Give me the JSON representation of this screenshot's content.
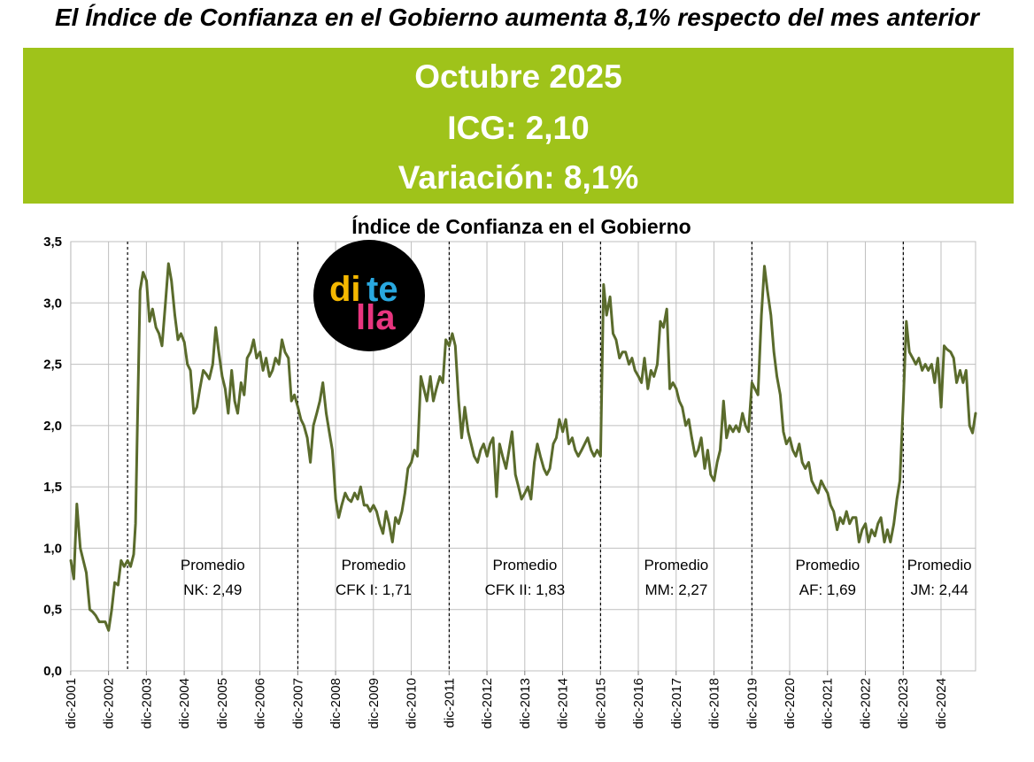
{
  "headline": "El Índice de Confianza en el Gobierno aumenta 8,1% respecto del mes anterior",
  "banner": {
    "line1": "Octubre 2025",
    "line2": "ICG: 2,10",
    "line3": "Variación: 8,1%",
    "color": "#9fc31a"
  },
  "logo": {
    "text": "ditella",
    "colors": {
      "di": "#f5b800",
      "te": "#29a8e0",
      "lla": "#e8357f",
      "background": "#000000"
    }
  },
  "chart_data": {
    "type": "line",
    "title": "Índice de Confianza en el Gobierno",
    "xlabel": "",
    "ylabel": "",
    "ylim": [
      0,
      3.5
    ],
    "yticks": [
      0,
      0.5,
      1,
      1.5,
      2,
      2.5,
      3,
      3.5
    ],
    "ytick_labels": [
      "0,0",
      "0,5",
      "1,0",
      "1,5",
      "2,0",
      "2,5",
      "3,0",
      "3,5"
    ],
    "xlim": [
      2001.92,
      2025.83
    ],
    "xticks": [
      "dic-2001",
      "dic-2002",
      "dic-2003",
      "dic-2004",
      "dic-2005",
      "dic-2006",
      "dic-2007",
      "dic-2008",
      "dic-2009",
      "dic-2010",
      "dic-2011",
      "dic-2012",
      "dic-2013",
      "dic-2014",
      "dic-2015",
      "dic-2016",
      "dic-2017",
      "dic-2018",
      "dic-2019",
      "dic-2020",
      "dic-2021",
      "dic-2022",
      "dic-2023",
      "dic-2024"
    ],
    "grid": true,
    "line_color": "#5a6b2c",
    "period_dividers": [
      2003.42,
      2007.92,
      2011.92,
      2015.92,
      2019.92,
      2023.92
    ],
    "annotations": [
      {
        "line1": "Promedio",
        "line2": "NK: 2,49"
      },
      {
        "line1": "Promedio",
        "line2": "CFK I: 1,71"
      },
      {
        "line1": "Promedio",
        "line2": "CFK II: 1,83"
      },
      {
        "line1": "Promedio",
        "line2": "MM: 2,27"
      },
      {
        "line1": "Promedio",
        "line2": "AF: 1,69"
      },
      {
        "line1": "Promedio",
        "line2": "JM: 2,44"
      }
    ],
    "series": [
      {
        "points": [
          [
            2001.92,
            0.9
          ],
          [
            2002.0,
            0.75
          ],
          [
            2002.08,
            1.36
          ],
          [
            2002.17,
            1.0
          ],
          [
            2002.33,
            0.8
          ],
          [
            2002.42,
            0.5
          ],
          [
            2002.5,
            0.48
          ],
          [
            2002.58,
            0.45
          ],
          [
            2002.67,
            0.4
          ],
          [
            2002.83,
            0.4
          ],
          [
            2002.92,
            0.33
          ],
          [
            2003.0,
            0.5
          ],
          [
            2003.08,
            0.72
          ],
          [
            2003.17,
            0.7
          ],
          [
            2003.25,
            0.9
          ],
          [
            2003.33,
            0.85
          ],
          [
            2003.42,
            0.9
          ],
          [
            2003.5,
            0.85
          ],
          [
            2003.58,
            0.95
          ],
          [
            2003.63,
            1.2
          ],
          [
            2003.68,
            2.0
          ],
          [
            2003.75,
            3.1
          ],
          [
            2003.83,
            3.25
          ],
          [
            2003.92,
            3.18
          ],
          [
            2004.0,
            2.85
          ],
          [
            2004.08,
            2.95
          ],
          [
            2004.17,
            2.8
          ],
          [
            2004.25,
            2.75
          ],
          [
            2004.33,
            2.65
          ],
          [
            2004.42,
            3.0
          ],
          [
            2004.5,
            3.32
          ],
          [
            2004.58,
            3.18
          ],
          [
            2004.67,
            2.9
          ],
          [
            2004.75,
            2.7
          ],
          [
            2004.83,
            2.75
          ],
          [
            2004.92,
            2.68
          ],
          [
            2005.0,
            2.5
          ],
          [
            2005.08,
            2.45
          ],
          [
            2005.17,
            2.1
          ],
          [
            2005.25,
            2.15
          ],
          [
            2005.33,
            2.3
          ],
          [
            2005.42,
            2.45
          ],
          [
            2005.5,
            2.42
          ],
          [
            2005.58,
            2.38
          ],
          [
            2005.67,
            2.5
          ],
          [
            2005.75,
            2.8
          ],
          [
            2005.83,
            2.6
          ],
          [
            2005.92,
            2.4
          ],
          [
            2006.0,
            2.3
          ],
          [
            2006.08,
            2.1
          ],
          [
            2006.17,
            2.45
          ],
          [
            2006.25,
            2.2
          ],
          [
            2006.33,
            2.1
          ],
          [
            2006.42,
            2.35
          ],
          [
            2006.5,
            2.25
          ],
          [
            2006.58,
            2.55
          ],
          [
            2006.67,
            2.6
          ],
          [
            2006.75,
            2.7
          ],
          [
            2006.83,
            2.55
          ],
          [
            2006.92,
            2.6
          ],
          [
            2007.0,
            2.45
          ],
          [
            2007.08,
            2.55
          ],
          [
            2007.17,
            2.4
          ],
          [
            2007.25,
            2.45
          ],
          [
            2007.33,
            2.55
          ],
          [
            2007.42,
            2.5
          ],
          [
            2007.5,
            2.7
          ],
          [
            2007.58,
            2.6
          ],
          [
            2007.67,
            2.55
          ],
          [
            2007.75,
            2.2
          ],
          [
            2007.83,
            2.25
          ],
          [
            2007.92,
            2.15
          ],
          [
            2008.0,
            2.05
          ],
          [
            2008.08,
            2.0
          ],
          [
            2008.17,
            1.9
          ],
          [
            2008.25,
            1.7
          ],
          [
            2008.33,
            2.0
          ],
          [
            2008.42,
            2.1
          ],
          [
            2008.5,
            2.2
          ],
          [
            2008.58,
            2.35
          ],
          [
            2008.67,
            2.1
          ],
          [
            2008.75,
            1.95
          ],
          [
            2008.83,
            1.8
          ],
          [
            2008.92,
            1.4
          ],
          [
            2009.0,
            1.25
          ],
          [
            2009.08,
            1.35
          ],
          [
            2009.17,
            1.45
          ],
          [
            2009.25,
            1.4
          ],
          [
            2009.33,
            1.38
          ],
          [
            2009.42,
            1.45
          ],
          [
            2009.5,
            1.4
          ],
          [
            2009.58,
            1.5
          ],
          [
            2009.67,
            1.35
          ],
          [
            2009.75,
            1.35
          ],
          [
            2009.83,
            1.3
          ],
          [
            2009.92,
            1.35
          ],
          [
            2010.0,
            1.3
          ],
          [
            2010.08,
            1.2
          ],
          [
            2010.17,
            1.12
          ],
          [
            2010.25,
            1.3
          ],
          [
            2010.33,
            1.2
          ],
          [
            2010.42,
            1.05
          ],
          [
            2010.5,
            1.25
          ],
          [
            2010.58,
            1.2
          ],
          [
            2010.67,
            1.3
          ],
          [
            2010.75,
            1.45
          ],
          [
            2010.83,
            1.65
          ],
          [
            2010.92,
            1.7
          ],
          [
            2011.0,
            1.8
          ],
          [
            2011.08,
            1.75
          ],
          [
            2011.17,
            2.4
          ],
          [
            2011.25,
            2.3
          ],
          [
            2011.33,
            2.2
          ],
          [
            2011.42,
            2.4
          ],
          [
            2011.5,
            2.2
          ],
          [
            2011.58,
            2.3
          ],
          [
            2011.67,
            2.4
          ],
          [
            2011.75,
            2.35
          ],
          [
            2011.83,
            2.7
          ],
          [
            2011.92,
            2.65
          ],
          [
            2012.0,
            2.75
          ],
          [
            2012.08,
            2.65
          ],
          [
            2012.17,
            2.2
          ],
          [
            2012.25,
            1.9
          ],
          [
            2012.33,
            2.15
          ],
          [
            2012.42,
            1.95
          ],
          [
            2012.5,
            1.85
          ],
          [
            2012.58,
            1.75
          ],
          [
            2012.67,
            1.7
          ],
          [
            2012.75,
            1.8
          ],
          [
            2012.83,
            1.85
          ],
          [
            2012.92,
            1.75
          ],
          [
            2013.0,
            1.85
          ],
          [
            2013.08,
            1.9
          ],
          [
            2013.17,
            1.42
          ],
          [
            2013.25,
            1.85
          ],
          [
            2013.33,
            1.75
          ],
          [
            2013.42,
            1.65
          ],
          [
            2013.5,
            1.8
          ],
          [
            2013.58,
            1.95
          ],
          [
            2013.67,
            1.6
          ],
          [
            2013.75,
            1.5
          ],
          [
            2013.83,
            1.4
          ],
          [
            2013.92,
            1.45
          ],
          [
            2014.0,
            1.5
          ],
          [
            2014.08,
            1.4
          ],
          [
            2014.17,
            1.7
          ],
          [
            2014.25,
            1.85
          ],
          [
            2014.33,
            1.75
          ],
          [
            2014.42,
            1.65
          ],
          [
            2014.5,
            1.6
          ],
          [
            2014.58,
            1.65
          ],
          [
            2014.67,
            1.85
          ],
          [
            2014.75,
            1.9
          ],
          [
            2014.83,
            2.05
          ],
          [
            2014.92,
            1.95
          ],
          [
            2015.0,
            2.05
          ],
          [
            2015.08,
            1.85
          ],
          [
            2015.17,
            1.9
          ],
          [
            2015.25,
            1.8
          ],
          [
            2015.33,
            1.75
          ],
          [
            2015.42,
            1.8
          ],
          [
            2015.5,
            1.85
          ],
          [
            2015.58,
            1.9
          ],
          [
            2015.67,
            1.8
          ],
          [
            2015.75,
            1.75
          ],
          [
            2015.83,
            1.8
          ],
          [
            2015.92,
            1.75
          ],
          [
            2016.0,
            3.15
          ],
          [
            2016.08,
            2.9
          ],
          [
            2016.17,
            3.05
          ],
          [
            2016.25,
            2.75
          ],
          [
            2016.33,
            2.7
          ],
          [
            2016.42,
            2.55
          ],
          [
            2016.5,
            2.6
          ],
          [
            2016.58,
            2.6
          ],
          [
            2016.67,
            2.5
          ],
          [
            2016.75,
            2.55
          ],
          [
            2016.83,
            2.45
          ],
          [
            2016.92,
            2.4
          ],
          [
            2017.0,
            2.35
          ],
          [
            2017.08,
            2.55
          ],
          [
            2017.17,
            2.3
          ],
          [
            2017.25,
            2.45
          ],
          [
            2017.33,
            2.4
          ],
          [
            2017.42,
            2.5
          ],
          [
            2017.5,
            2.85
          ],
          [
            2017.58,
            2.8
          ],
          [
            2017.67,
            2.95
          ],
          [
            2017.75,
            2.3
          ],
          [
            2017.83,
            2.35
          ],
          [
            2017.92,
            2.3
          ],
          [
            2018.0,
            2.2
          ],
          [
            2018.08,
            2.15
          ],
          [
            2018.17,
            2.0
          ],
          [
            2018.25,
            2.05
          ],
          [
            2018.33,
            1.9
          ],
          [
            2018.42,
            1.75
          ],
          [
            2018.5,
            1.8
          ],
          [
            2018.58,
            1.9
          ],
          [
            2018.67,
            1.65
          ],
          [
            2018.75,
            1.8
          ],
          [
            2018.83,
            1.6
          ],
          [
            2018.92,
            1.55
          ],
          [
            2019.0,
            1.7
          ],
          [
            2019.08,
            1.8
          ],
          [
            2019.17,
            2.2
          ],
          [
            2019.25,
            1.9
          ],
          [
            2019.33,
            2.0
          ],
          [
            2019.42,
            1.95
          ],
          [
            2019.5,
            2.0
          ],
          [
            2019.58,
            1.95
          ],
          [
            2019.67,
            2.1
          ],
          [
            2019.75,
            2.0
          ],
          [
            2019.83,
            1.95
          ],
          [
            2019.92,
            2.35
          ],
          [
            2020.0,
            2.3
          ],
          [
            2020.08,
            2.25
          ],
          [
            2020.17,
            2.9
          ],
          [
            2020.25,
            3.3
          ],
          [
            2020.33,
            3.1
          ],
          [
            2020.42,
            2.9
          ],
          [
            2020.5,
            2.6
          ],
          [
            2020.58,
            2.4
          ],
          [
            2020.67,
            2.25
          ],
          [
            2020.75,
            1.95
          ],
          [
            2020.83,
            1.85
          ],
          [
            2020.92,
            1.9
          ],
          [
            2021.0,
            1.8
          ],
          [
            2021.08,
            1.75
          ],
          [
            2021.17,
            1.85
          ],
          [
            2021.25,
            1.7
          ],
          [
            2021.33,
            1.65
          ],
          [
            2021.42,
            1.7
          ],
          [
            2021.5,
            1.55
          ],
          [
            2021.58,
            1.5
          ],
          [
            2021.67,
            1.45
          ],
          [
            2021.75,
            1.55
          ],
          [
            2021.83,
            1.5
          ],
          [
            2021.92,
            1.45
          ],
          [
            2022.0,
            1.35
          ],
          [
            2022.08,
            1.3
          ],
          [
            2022.17,
            1.15
          ],
          [
            2022.25,
            1.25
          ],
          [
            2022.33,
            1.2
          ],
          [
            2022.42,
            1.3
          ],
          [
            2022.5,
            1.2
          ],
          [
            2022.58,
            1.25
          ],
          [
            2022.67,
            1.25
          ],
          [
            2022.75,
            1.05
          ],
          [
            2022.83,
            1.15
          ],
          [
            2022.92,
            1.2
          ],
          [
            2023.0,
            1.05
          ],
          [
            2023.08,
            1.15
          ],
          [
            2023.17,
            1.1
          ],
          [
            2023.25,
            1.2
          ],
          [
            2023.33,
            1.25
          ],
          [
            2023.42,
            1.05
          ],
          [
            2023.5,
            1.15
          ],
          [
            2023.58,
            1.05
          ],
          [
            2023.67,
            1.2
          ],
          [
            2023.75,
            1.4
          ],
          [
            2023.83,
            1.55
          ],
          [
            2023.92,
            2.2
          ],
          [
            2024.0,
            2.85
          ],
          [
            2024.08,
            2.6
          ],
          [
            2024.17,
            2.55
          ],
          [
            2024.25,
            2.5
          ],
          [
            2024.33,
            2.55
          ],
          [
            2024.42,
            2.45
          ],
          [
            2024.5,
            2.5
          ],
          [
            2024.58,
            2.45
          ],
          [
            2024.67,
            2.5
          ],
          [
            2024.75,
            2.35
          ],
          [
            2024.83,
            2.55
          ],
          [
            2024.92,
            2.15
          ],
          [
            2025.0,
            2.65
          ],
          [
            2025.08,
            2.62
          ],
          [
            2025.17,
            2.6
          ],
          [
            2025.25,
            2.55
          ],
          [
            2025.33,
            2.35
          ],
          [
            2025.42,
            2.45
          ],
          [
            2025.5,
            2.35
          ],
          [
            2025.58,
            2.45
          ],
          [
            2025.67,
            2.0
          ],
          [
            2025.75,
            1.94
          ],
          [
            2025.83,
            2.1
          ]
        ]
      }
    ]
  }
}
